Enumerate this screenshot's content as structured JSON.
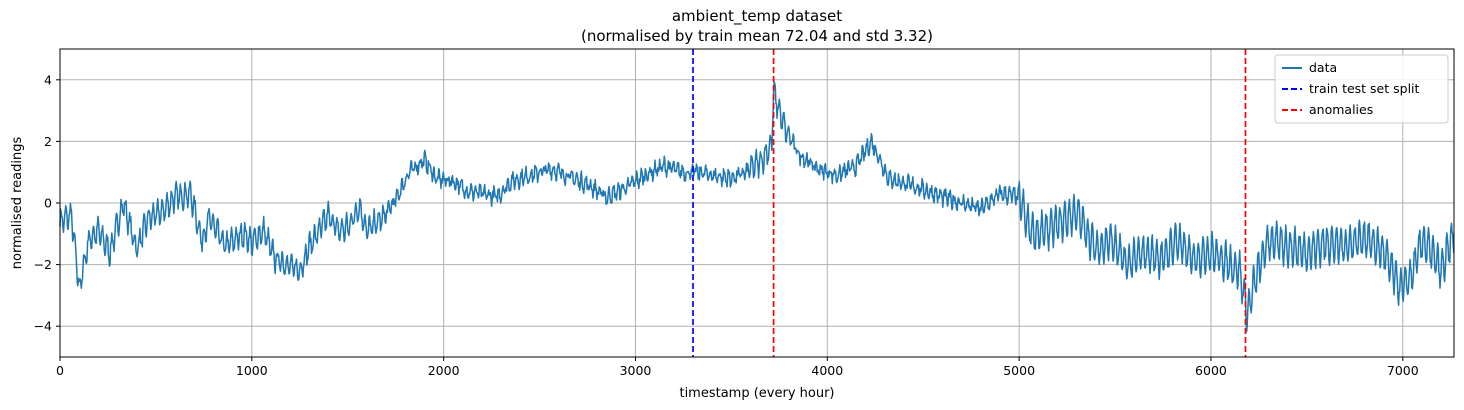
{
  "chart_data": {
    "type": "line",
    "title": "ambient_temp dataset",
    "subtitle": "(normalised by train mean 72.04 and std 3.32)",
    "xlabel": "timestamp (every hour)",
    "ylabel": "normalised readings",
    "xlim": [
      0,
      7267
    ],
    "ylim": [
      -5,
      5
    ],
    "x_ticks": [
      0,
      1000,
      2000,
      3000,
      4000,
      5000,
      6000,
      7000
    ],
    "y_ticks": [
      -4,
      -2,
      0,
      2,
      4
    ],
    "x_tick_labels": [
      "0",
      "1000",
      "2000",
      "3000",
      "4000",
      "5000",
      "6000",
      "7000"
    ],
    "y_tick_labels": [
      "−4",
      "−2",
      "0",
      "2",
      "4"
    ],
    "grid": true,
    "legend_position": "top-right",
    "series": [
      {
        "name": "data",
        "color": "#1f77b4",
        "style": "solid",
        "trend": [
          [
            0,
            -0.6
          ],
          [
            60,
            -0.4
          ],
          [
            100,
            -2.8
          ],
          [
            150,
            -1.2
          ],
          [
            200,
            -0.9
          ],
          [
            260,
            -1.6
          ],
          [
            330,
            0.0
          ],
          [
            400,
            -1.5
          ],
          [
            460,
            -0.5
          ],
          [
            530,
            -0.3
          ],
          [
            600,
            0.2
          ],
          [
            680,
            0.3
          ],
          [
            740,
            -1.2
          ],
          [
            780,
            -0.5
          ],
          [
            860,
            -1.4
          ],
          [
            960,
            -1.0
          ],
          [
            1000,
            -1.3
          ],
          [
            1060,
            -0.9
          ],
          [
            1120,
            -1.8
          ],
          [
            1250,
            -2.2
          ],
          [
            1300,
            -1.4
          ],
          [
            1400,
            -0.4
          ],
          [
            1450,
            -0.9
          ],
          [
            1500,
            -0.8
          ],
          [
            1560,
            -0.1
          ],
          [
            1600,
            -0.9
          ],
          [
            1680,
            -0.5
          ],
          [
            1750,
            0.1
          ],
          [
            1820,
            1.0
          ],
          [
            1900,
            1.4
          ],
          [
            1960,
            0.8
          ],
          [
            2050,
            0.7
          ],
          [
            2120,
            0.4
          ],
          [
            2200,
            0.3
          ],
          [
            2280,
            0.2
          ],
          [
            2350,
            0.7
          ],
          [
            2450,
            0.9
          ],
          [
            2560,
            1.1
          ],
          [
            2640,
            0.9
          ],
          [
            2750,
            0.6
          ],
          [
            2850,
            0.2
          ],
          [
            2950,
            0.5
          ],
          [
            3050,
            0.9
          ],
          [
            3150,
            1.2
          ],
          [
            3250,
            1.0
          ],
          [
            3330,
            1.0
          ],
          [
            3400,
            0.9
          ],
          [
            3500,
            0.8
          ],
          [
            3580,
            1.0
          ],
          [
            3660,
            1.4
          ],
          [
            3710,
            1.9
          ],
          [
            3720,
            3.6
          ],
          [
            3780,
            2.4
          ],
          [
            3850,
            1.6
          ],
          [
            3950,
            1.1
          ],
          [
            4050,
            0.9
          ],
          [
            4150,
            1.2
          ],
          [
            4230,
            2.0
          ],
          [
            4320,
            0.8
          ],
          [
            4420,
            0.6
          ],
          [
            4520,
            0.4
          ],
          [
            4600,
            0.2
          ],
          [
            4700,
            0.0
          ],
          [
            4800,
            -0.2
          ],
          [
            4900,
            0.3
          ],
          [
            5000,
            0.2
          ],
          [
            5050,
            -0.8
          ],
          [
            5100,
            -1.0
          ],
          [
            5200,
            -0.7
          ],
          [
            5300,
            -0.3
          ],
          [
            5400,
            -1.5
          ],
          [
            5480,
            -1.2
          ],
          [
            5560,
            -2.0
          ],
          [
            5650,
            -1.6
          ],
          [
            5750,
            -1.8
          ],
          [
            5820,
            -1.2
          ],
          [
            5900,
            -1.8
          ],
          [
            6000,
            -1.6
          ],
          [
            6100,
            -2.0
          ],
          [
            6150,
            -2.2
          ],
          [
            6190,
            -3.6
          ],
          [
            6230,
            -2.5
          ],
          [
            6300,
            -1.2
          ],
          [
            6400,
            -1.4
          ],
          [
            6500,
            -1.6
          ],
          [
            6600,
            -1.3
          ],
          [
            6700,
            -1.4
          ],
          [
            6800,
            -1.1
          ],
          [
            6900,
            -1.6
          ],
          [
            6990,
            -2.8
          ],
          [
            7050,
            -2.3
          ],
          [
            7100,
            -1.2
          ],
          [
            7150,
            -1.6
          ],
          [
            7200,
            -2.2
          ],
          [
            7267,
            -1.0
          ]
        ]
      },
      {
        "name": "train test set split",
        "color": "#0000ff",
        "style": "dashed",
        "x": 3300
      },
      {
        "name": "anomalies",
        "color": "#ff0000",
        "style": "dashed",
        "x": [
          3720,
          6180
        ]
      }
    ]
  }
}
